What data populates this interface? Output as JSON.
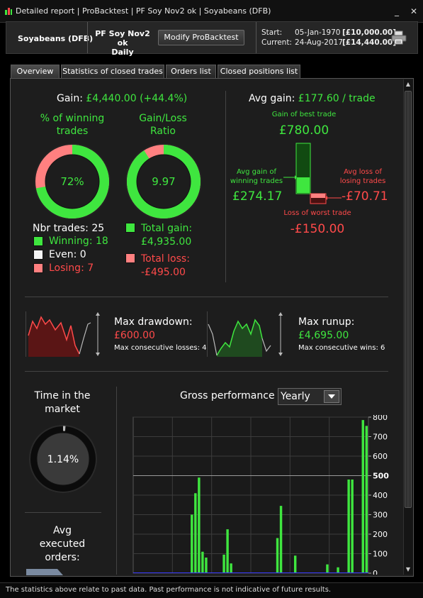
{
  "titlebar": {
    "text": "Detailed report | ProBacktest | PF Soy Nov2 ok | Soyabeans (DFB)",
    "minimize": "_",
    "close": "✕"
  },
  "header": {
    "instrument": "Soyabeans (DFB)",
    "system_line1": "PF Soy Nov2 ok",
    "system_line2": "Daily",
    "modify_button": "Modify ProBacktest",
    "start_label": "Start:",
    "start_date": "05-Jan-1970",
    "start_capital": "[£10,000.00]",
    "current_label": "Current:",
    "current_date": "24-Aug-2017",
    "current_capital": "[£14,440.00]"
  },
  "tabs": [
    {
      "label": "Overview",
      "active": true
    },
    {
      "label": "Statistics of closed trades",
      "active": false
    },
    {
      "label": "Orders list",
      "active": false
    },
    {
      "label": "Closed positions list",
      "active": false
    }
  ],
  "overview": {
    "gain_label": "Gain:",
    "gain_value": "£4,440.00 (+44.4%)",
    "winning_title_1": "% of winning",
    "winning_title_2": "trades",
    "winning_pct_text": "72%",
    "winning_fraction": 0.72,
    "ratio_title_1": "Gain/Loss",
    "ratio_title_2": "Ratio",
    "ratio_text": "9.97",
    "ratio_fraction": 0.909,
    "nbr_trades": "Nbr trades: 25",
    "winning": "Winning: 18",
    "even": "Even: 0",
    "losing": "Losing: 7",
    "total_gain_label": "Total gain:",
    "total_gain_value": "£4,935.00",
    "total_loss_label": "Total loss:",
    "total_loss_value": "-£495.00",
    "avg_gain_label": "Avg gain:",
    "avg_gain_value": "£177.60 / trade",
    "best_trade_label": "Gain of best trade",
    "best_trade_value": "£780.00",
    "avg_win_label_1": "Avg gain of",
    "avg_win_label_2": "winning trades",
    "avg_win_value": "£274.17",
    "avg_loss_label_1": "Avg loss of",
    "avg_loss_label_2": "losing trades",
    "avg_loss_value": "-£70.71",
    "worst_trade_label": "Loss of worst trade",
    "worst_trade_value": "-£150.00",
    "drawdown_label": "Max drawdown:",
    "drawdown_value": "£600.00",
    "consec_losses": "Max consecutive losses: 4",
    "runup_label": "Max runup:",
    "runup_value": "£4,695.00",
    "consec_wins": "Max consecutive wins: 6",
    "time_title_1": "Time in the",
    "time_title_2": "market",
    "time_value": "1.14%",
    "time_fraction": 0.0114,
    "avg_exec_1": "Avg",
    "avg_exec_2": "executed",
    "avg_exec_3": "orders:",
    "gross_perf_label": "Gross performance",
    "period_select": "Yearly"
  },
  "colors": {
    "green": "#3fe63f",
    "red": "#ff4a4a",
    "light_red": "#ff8080"
  },
  "chart_data": {
    "type": "bar",
    "title": "Gross performance",
    "ylim": [
      0,
      800
    ],
    "yticks": [
      "800",
      "700",
      "600",
      "500",
      "400",
      "300",
      "200",
      "100",
      "0"
    ],
    "values": [
      0,
      0,
      0,
      0,
      0,
      0,
      0,
      0,
      0,
      0,
      0,
      0,
      0,
      0,
      0,
      0,
      300,
      410,
      490,
      110,
      80,
      0,
      0,
      0,
      0,
      95,
      225,
      50,
      0,
      0,
      0,
      0,
      0,
      0,
      0,
      0,
      0,
      0,
      0,
      0,
      180,
      345,
      0,
      0,
      0,
      90,
      0,
      0,
      0,
      0,
      0,
      0,
      0,
      0,
      45,
      0,
      0,
      30,
      0,
      0,
      480,
      480,
      0,
      0,
      785,
      755
    ],
    "grid": true,
    "bar_color": "#3fe63f"
  },
  "footer": {
    "text": "The statistics above relate to past data. Past performance is not indicative of future results."
  }
}
